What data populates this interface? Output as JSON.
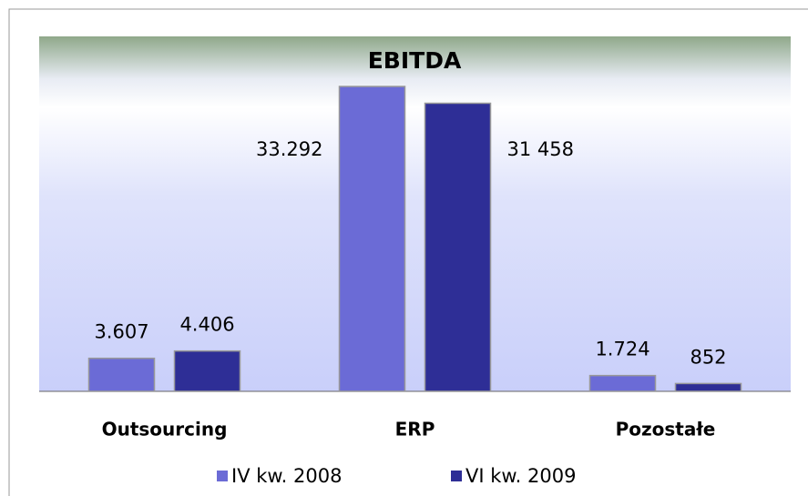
{
  "chart_data": {
    "type": "bar",
    "title": "EBITDA",
    "categories": [
      "Outsourcing",
      "ERP",
      "Pozostałe"
    ],
    "series": [
      {
        "name": "IV kw. 2008",
        "color": "#6b6bd6",
        "values": [
          3607,
          33292,
          1724
        ],
        "value_labels": [
          "3.607",
          "33.292",
          "1.724"
        ]
      },
      {
        "name": "VI kw. 2009",
        "color": "#2e2e96",
        "values": [
          4406,
          31458,
          852
        ],
        "value_labels": [
          "4.406",
          "31 458",
          "852"
        ]
      }
    ],
    "legend": "bottom"
  }
}
